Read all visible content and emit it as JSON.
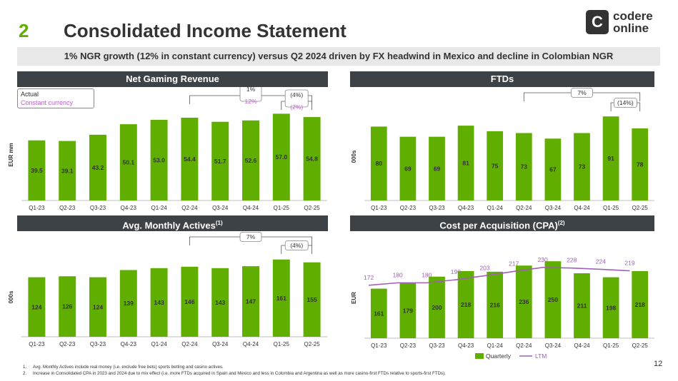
{
  "header": {
    "number": "2",
    "title": "Consolidated Income Statement"
  },
  "logo": {
    "line1": "codere",
    "line2": "online",
    "glyph": "C"
  },
  "subtitle": "1% NGR growth (12% in constant currency) versus Q2 2024 driven by FX headwind in Mexico and decline in Colombian NGR",
  "legend": {
    "actual": "Actual",
    "constant": "Constant currency"
  },
  "colors": {
    "bar": "#5fae00",
    "header": "#3d4247",
    "ltm": "#a060b8",
    "accent_purple": "#b860c8"
  },
  "page_number": "12",
  "footnotes": [
    {
      "num": "1.",
      "text": "Avg. Monthly Actives include real money (i.e. exclude free bets) sports betting and casino actives."
    },
    {
      "num": "2.",
      "text": "Increase in Consolidated CPA in 2023 and 2024 due to mix effect (i.e. more FTDs acquired in Spain and Mexico and less in Colombia and Argentina as well as more casino-first FTDs relative to sports-first FTDs)."
    }
  ],
  "chart_data": [
    {
      "type": "bar",
      "title": "Net Gaming Revenue",
      "ylabel": "EUR mm",
      "categories": [
        "Q1-23",
        "Q2-23",
        "Q3-23",
        "Q4-23",
        "Q1-24",
        "Q2-24",
        "Q3-24",
        "Q4-24",
        "Q1-25",
        "Q2-25"
      ],
      "values": [
        39.5,
        39.1,
        43.2,
        50.1,
        53.0,
        54.4,
        51.7,
        52.6,
        57.0,
        54.8
      ],
      "labels": [
        "39.5",
        "39.1",
        "43.2",
        "50.1",
        "53.0",
        "54.4",
        "51.7",
        "52.6",
        "57.0",
        "54.8"
      ],
      "ylim": [
        0,
        60
      ],
      "annotations": [
        {
          "label": "1%",
          "label2": "12%",
          "from": "Q2-24",
          "to": "Q2-25"
        },
        {
          "label": "(4%)",
          "label2": "(2%)",
          "from": "Q1-25",
          "to": "Q2-25"
        }
      ]
    },
    {
      "type": "bar",
      "title": "FTDs",
      "ylabel": "000s",
      "categories": [
        "Q1-23",
        "Q2-23",
        "Q3-23",
        "Q4-23",
        "Q1-24",
        "Q2-24",
        "Q3-24",
        "Q4-24",
        "Q1-25",
        "Q2-25"
      ],
      "values": [
        80,
        69,
        69,
        81,
        75,
        73,
        67,
        73,
        91,
        78
      ],
      "labels": [
        "80",
        "69",
        "69",
        "81",
        "75",
        "73",
        "67",
        "73",
        "91",
        "78"
      ],
      "ylim": [
        0,
        95
      ],
      "annotations": [
        {
          "label": "7%",
          "label2": "",
          "from": "Q2-24",
          "to": "Q2-25"
        },
        {
          "label": "(14%)",
          "label2": "",
          "from": "Q1-25",
          "to": "Q2-25"
        }
      ]
    },
    {
      "type": "bar",
      "title": "Avg. Monthly Actives",
      "title_sup": "(1)",
      "ylabel": "000s",
      "categories": [
        "Q1-23",
        "Q2-23",
        "Q3-23",
        "Q4-23",
        "Q1-24",
        "Q2-24",
        "Q3-24",
        "Q4-24",
        "Q1-25",
        "Q2-25"
      ],
      "values": [
        124,
        126,
        124,
        139,
        143,
        146,
        143,
        147,
        161,
        155
      ],
      "labels": [
        "124",
        "126",
        "124",
        "139",
        "143",
        "146",
        "143",
        "147",
        "161",
        "155"
      ],
      "ylim": [
        0,
        165
      ],
      "annotations": [
        {
          "label": "7%",
          "label2": "",
          "from": "Q2-24",
          "to": "Q2-25"
        },
        {
          "label": "(4%)",
          "label2": "",
          "from": "Q1-25",
          "to": "Q2-25"
        }
      ]
    },
    {
      "type": "bar",
      "title": "Cost per Acquisition (CPA)",
      "title_sup": "(2)",
      "ylabel": "EUR",
      "categories": [
        "Q1-23",
        "Q2-23",
        "Q3-23",
        "Q4-23",
        "Q1-24",
        "Q2-24",
        "Q3-24",
        "Q4-24",
        "Q1-25",
        "Q2-25"
      ],
      "series": [
        {
          "name": "Quarterly",
          "type": "bar",
          "values": [
            161,
            179,
            200,
            218,
            216,
            236,
            250,
            211,
            198,
            218
          ],
          "labels": [
            "161",
            "179",
            "200",
            "218",
            "216",
            "236",
            "250",
            "211",
            "198",
            "218"
          ]
        },
        {
          "name": "LTM",
          "type": "line",
          "values": [
            172,
            180,
            180,
            190,
            203,
            217,
            230,
            228,
            224,
            219
          ],
          "labels": [
            "172",
            "180",
            "180",
            "190",
            "203",
            "217",
            "230",
            "228",
            "224",
            "219"
          ]
        }
      ],
      "ylim": [
        0,
        262
      ],
      "legend": "bottom"
    }
  ]
}
